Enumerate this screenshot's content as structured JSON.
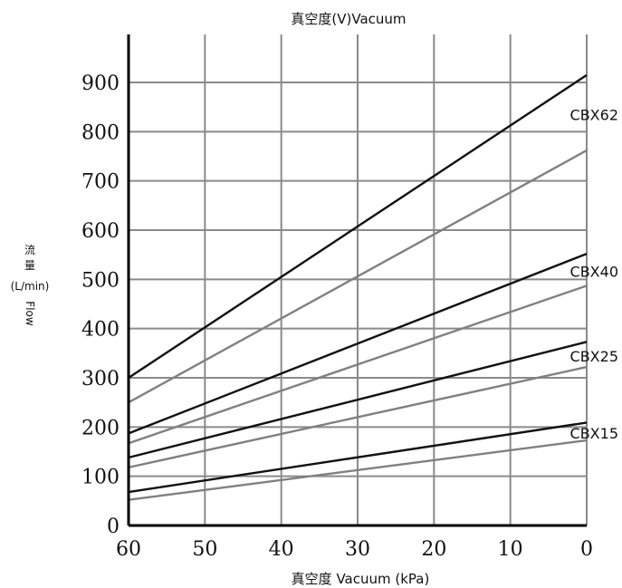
{
  "chart_data": {
    "type": "line",
    "title": "真空度(V)Vacuum",
    "xlabel": "真空度 Vacuum (kPa)",
    "ylabel_lines": [
      "流",
      "量",
      "(L/min)",
      "Flow"
    ],
    "xlim": [
      60,
      0
    ],
    "ylim": [
      0,
      950
    ],
    "x_ticks": [
      60,
      50,
      40,
      30,
      20,
      10,
      0
    ],
    "y_ticks": [
      0,
      100,
      200,
      300,
      400,
      500,
      600,
      700,
      800,
      900
    ],
    "grid": true,
    "colors": {
      "dark": "#111111",
      "light": "#808080",
      "grid": "#8a8a8a",
      "axis": "#000000"
    },
    "series": [
      {
        "name": "CBX62",
        "lines": [
          {
            "tone": "dark",
            "x": [
              60,
              0
            ],
            "y": [
              300,
              915
            ]
          },
          {
            "tone": "light",
            "x": [
              60,
              0
            ],
            "y": [
              250,
              762
            ]
          }
        ]
      },
      {
        "name": "CBX40",
        "lines": [
          {
            "tone": "dark",
            "x": [
              60,
              0
            ],
            "y": [
              187,
              552
            ]
          },
          {
            "tone": "light",
            "x": [
              60,
              0
            ],
            "y": [
              167,
              487
            ]
          }
        ]
      },
      {
        "name": "CBX25",
        "lines": [
          {
            "tone": "dark",
            "x": [
              60,
              0
            ],
            "y": [
              138,
              373
            ]
          },
          {
            "tone": "light",
            "x": [
              60,
              0
            ],
            "y": [
              118,
              322
            ]
          }
        ]
      },
      {
        "name": "CBX15",
        "lines": [
          {
            "tone": "dark",
            "x": [
              60,
              0
            ],
            "y": [
              68,
              209
            ]
          },
          {
            "tone": "light",
            "x": [
              60,
              0
            ],
            "y": [
              52,
              173
            ]
          }
        ]
      }
    ]
  }
}
